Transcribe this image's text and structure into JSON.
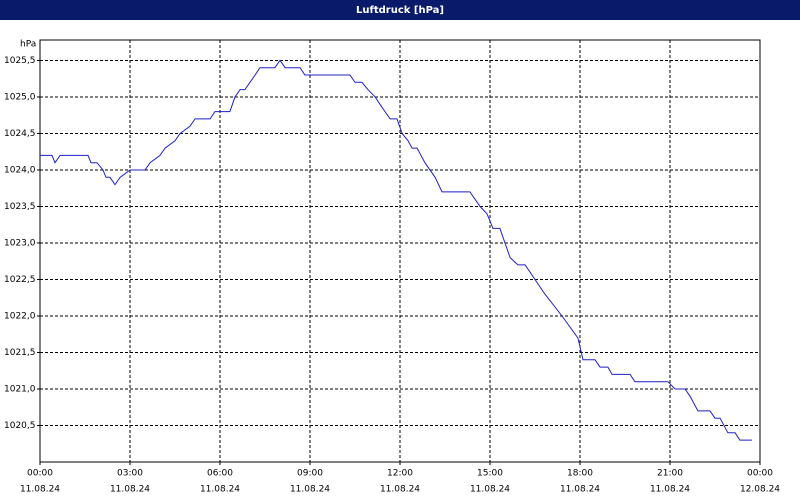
{
  "chart_data": {
    "type": "line",
    "title": "Luftdruck [hPa]",
    "y_unit": "hPa",
    "x": [
      0,
      0.4,
      0.5,
      0.67,
      1.6,
      1.7,
      1.9,
      2.1,
      2.2,
      2.33,
      2.5,
      2.67,
      3.0,
      3.5,
      3.67,
      4.0,
      4.17,
      4.5,
      4.67,
      5.0,
      5.17,
      5.67,
      5.83,
      6.33,
      6.5,
      6.67,
      6.83,
      7.0,
      7.17,
      7.33,
      7.83,
      8.0,
      8.17,
      8.67,
      8.83,
      10.33,
      10.5,
      10.73,
      10.93,
      11.17,
      11.33,
      11.5,
      11.67,
      11.9,
      12.07,
      12.27,
      12.4,
      12.57,
      12.83,
      13.17,
      13.4,
      14.33,
      14.67,
      14.9,
      15.1,
      15.33,
      15.5,
      15.67,
      15.93,
      16.17,
      16.83,
      17.4,
      17.93,
      18.1,
      18.5,
      18.67,
      18.93,
      19.07,
      19.67,
      19.83,
      20.93,
      21.17,
      21.5,
      21.67,
      21.93,
      22.33,
      22.5,
      22.67,
      22.93,
      23.17,
      23.33,
      23.73
    ],
    "values": [
      1024.2,
      1024.2,
      1024.1,
      1024.2,
      1024.2,
      1024.1,
      1024.1,
      1024.0,
      1023.9,
      1023.9,
      1023.8,
      1023.9,
      1024.0,
      1024.0,
      1024.1,
      1024.2,
      1024.3,
      1024.4,
      1024.5,
      1024.6,
      1024.7,
      1024.7,
      1024.8,
      1024.8,
      1025.0,
      1025.1,
      1025.1,
      1025.2,
      1025.3,
      1025.4,
      1025.4,
      1025.5,
      1025.4,
      1025.4,
      1025.3,
      1025.3,
      1025.2,
      1025.2,
      1025.1,
      1025.0,
      1024.9,
      1024.8,
      1024.7,
      1024.7,
      1024.5,
      1024.4,
      1024.3,
      1024.3,
      1024.1,
      1023.9,
      1023.7,
      1023.7,
      1023.5,
      1023.4,
      1023.2,
      1023.2,
      1023.0,
      1022.8,
      1022.7,
      1022.7,
      1022.3,
      1022.0,
      1021.7,
      1021.4,
      1021.4,
      1021.3,
      1021.3,
      1021.2,
      1021.2,
      1021.1,
      1021.1,
      1021.0,
      1021.0,
      1020.9,
      1020.7,
      1020.7,
      1020.6,
      1020.6,
      1020.4,
      1020.4,
      1020.3,
      1020.3
    ],
    "color": "#1f1fc8",
    "xlim": [
      0,
      24
    ],
    "ylim": [
      1020.0,
      1025.78
    ],
    "xticks": [
      {
        "value": 0,
        "label": "00:00",
        "date": "11.08.24"
      },
      {
        "value": 3,
        "label": "03:00",
        "date": "11.08.24"
      },
      {
        "value": 6,
        "label": "06:00",
        "date": "11.08.24"
      },
      {
        "value": 9,
        "label": "09:00",
        "date": "11.08.24"
      },
      {
        "value": 12,
        "label": "12:00",
        "date": "11.08.24"
      },
      {
        "value": 15,
        "label": "15:00",
        "date": "11.08.24"
      },
      {
        "value": 18,
        "label": "18:00",
        "date": "11.08.24"
      },
      {
        "value": 21,
        "label": "21:00",
        "date": "11.08.24"
      },
      {
        "value": 24,
        "label": "00:00",
        "date": "12.08.24"
      }
    ],
    "yticks": [
      {
        "value": 1020.5,
        "label": "1020,5"
      },
      {
        "value": 1021.0,
        "label": "1021,0"
      },
      {
        "value": 1021.5,
        "label": "1021,5"
      },
      {
        "value": 1022.0,
        "label": "1022,0"
      },
      {
        "value": 1022.5,
        "label": "1022,5"
      },
      {
        "value": 1023.0,
        "label": "1023,0"
      },
      {
        "value": 1023.5,
        "label": "1023,5"
      },
      {
        "value": 1024.0,
        "label": "1024,0"
      },
      {
        "value": 1024.5,
        "label": "1024,5"
      },
      {
        "value": 1025.0,
        "label": "1025,0"
      },
      {
        "value": 1025.5,
        "label": "1025,5"
      }
    ],
    "grid": true
  }
}
